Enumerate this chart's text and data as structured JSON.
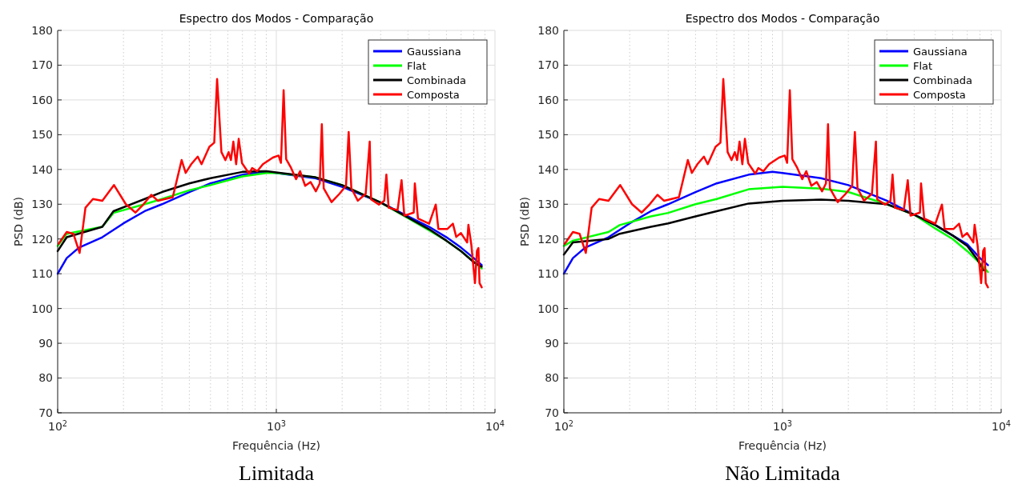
{
  "chart_data": [
    {
      "type": "line",
      "title": "Espectro dos Modos - Comparação",
      "xlabel": "Frequência (Hz)",
      "ylabel": "PSD (dB)",
      "log": "x",
      "grid": true,
      "legend": "top right",
      "xlim": [
        100,
        10000
      ],
      "ylim": [
        70,
        180
      ],
      "xticks": [
        {
          "value": 100,
          "label": "10$^{2}$"
        },
        {
          "value": 1000,
          "label": "10$^{3}$"
        },
        {
          "value": 10000,
          "label": "10$^{4}$"
        }
      ],
      "yticks": [
        70,
        80,
        90,
        100,
        110,
        120,
        130,
        140,
        150,
        160,
        170,
        180
      ],
      "annotations": [
        "Limitada"
      ],
      "series": [
        {
          "name": "Gaussiana",
          "color": "#0000ff",
          "x": [
            100,
            110,
            125,
            160,
            200,
            250,
            300,
            400,
            500,
            700,
            900,
            1000,
            1500,
            2000,
            3000,
            4000,
            5000,
            6000,
            7000,
            8000,
            8700
          ],
          "values": [
            110,
            114.5,
            117.5,
            120.5,
            124.5,
            128,
            130,
            133.5,
            136,
            138.5,
            139.3,
            139,
            137.5,
            135,
            130.5,
            126.5,
            123.5,
            120.5,
            117.5,
            114.5,
            112.5
          ]
        },
        {
          "name": "Flat",
          "color": "#00ff00",
          "x": [
            100,
            110,
            160,
            180,
            250,
            300,
            400,
            500,
            700,
            900,
            1000,
            1500,
            2000,
            3000,
            4000,
            5000,
            6000,
            7000,
            8000,
            8700
          ],
          "values": [
            118,
            121.5,
            123.5,
            127.5,
            130,
            131.5,
            134,
            135.5,
            138,
            139,
            139,
            137.8,
            135.5,
            130.5,
            126,
            122.5,
            119.5,
            116.5,
            113.5,
            111.5
          ]
        },
        {
          "name": "Combinada",
          "color": "#000000",
          "x": [
            100,
            110,
            160,
            180,
            250,
            300,
            400,
            500,
            700,
            900,
            1500,
            2000,
            3000,
            4000,
            5000,
            6000,
            7000,
            8000,
            8700
          ],
          "values": [
            116.5,
            120.5,
            123.5,
            128,
            131.5,
            133.5,
            136,
            137.5,
            139.3,
            139.5,
            137.8,
            135.5,
            130.5,
            126.2,
            122.8,
            119.5,
            116.5,
            113.3,
            112
          ]
        },
        {
          "name": "Composta",
          "color": "#ff0000",
          "x": [
            101,
            110,
            118,
            126,
            134,
            145,
            160,
            181,
            205,
            227,
            247,
            268,
            287,
            336,
            369,
            385,
            408,
            437,
            455,
            494,
            520,
            536,
            561,
            585,
            605,
            620,
            636,
            655,
            673,
            697,
            751,
            775,
            818,
            868,
            964,
            1024,
            1050,
            1080,
            1109,
            1163,
            1231,
            1284,
            1355,
            1434,
            1516,
            1580,
            1615,
            1647,
            1789,
            1944,
            2083,
            2142,
            2203,
            2359,
            2563,
            2674,
            2712,
            2946,
            3116,
            3186,
            3262,
            3585,
            3740,
            3850,
            4250,
            4300,
            4445,
            5000,
            5360,
            5510,
            6060,
            6420,
            6650,
            6990,
            7460,
            7560,
            7800,
            8100,
            8270,
            8400,
            8500,
            8700
          ],
          "values": [
            118.6,
            122,
            121.5,
            116,
            129,
            131.5,
            131,
            135.5,
            130,
            127.6,
            130,
            132.7,
            131,
            132,
            142.7,
            139,
            141.5,
            143.7,
            141.5,
            146.5,
            147.7,
            166,
            145,
            142.7,
            145,
            142.7,
            148,
            141.5,
            148.8,
            141.8,
            138.8,
            140.4,
            139.5,
            141.5,
            143.4,
            144,
            141.9,
            162.8,
            143,
            140.7,
            137.2,
            139.5,
            135.3,
            136.4,
            133.7,
            136,
            153,
            134.6,
            130.6,
            133,
            135.3,
            150.8,
            134.6,
            131,
            133,
            148,
            131.4,
            129.9,
            131,
            138.5,
            129,
            128.3,
            136.9,
            126.7,
            127.6,
            136,
            125.9,
            124.4,
            129.9,
            122.9,
            122.9,
            124.4,
            120.6,
            121.7,
            119,
            124.1,
            118.2,
            107.3,
            116.6,
            117.4,
            107.3,
            106.1
          ]
        }
      ]
    },
    {
      "type": "line",
      "title": "Espectro dos Modos - Comparação",
      "xlabel": "Frequência (Hz)",
      "ylabel": "PSD (dB)",
      "log": "x",
      "grid": true,
      "legend": "top right",
      "xlim": [
        100,
        10000
      ],
      "ylim": [
        70,
        180
      ],
      "xticks": [
        {
          "value": 100,
          "label": "10$^{2}$"
        },
        {
          "value": 1000,
          "label": "10$^{3}$"
        },
        {
          "value": 10000,
          "label": "10$^{4}$"
        }
      ],
      "yticks": [
        70,
        80,
        90,
        100,
        110,
        120,
        130,
        140,
        150,
        160,
        170,
        180
      ],
      "annotations": [
        "Não Limitada"
      ],
      "series": [
        {
          "name": "Gaussiana",
          "color": "#0000ff",
          "x": [
            100,
            110,
            125,
            160,
            200,
            250,
            300,
            400,
            500,
            700,
            900,
            1000,
            1500,
            2000,
            3000,
            4000,
            5000,
            6000,
            7000,
            8000,
            8700
          ],
          "values": [
            110,
            114.5,
            117.5,
            120.5,
            124.5,
            128,
            130,
            133.5,
            136,
            138.5,
            139.3,
            139,
            137.5,
            135.5,
            131,
            127,
            124,
            121,
            118.5,
            114.5,
            112.5
          ]
        },
        {
          "name": "Flat",
          "color": "#00ff00",
          "x": [
            100,
            110,
            160,
            180,
            250,
            300,
            400,
            500,
            700,
            1000,
            1500,
            2000,
            3000,
            4000,
            5000,
            6000,
            7000,
            8000,
            8700
          ],
          "values": [
            118,
            119.5,
            122,
            124,
            126.5,
            127.5,
            130,
            131.5,
            134.3,
            135,
            134.5,
            133.5,
            130,
            127,
            123,
            120,
            116.5,
            113,
            110.5
          ]
        },
        {
          "name": "Combinada",
          "color": "#000000",
          "x": [
            100,
            110,
            160,
            180,
            250,
            300,
            400,
            500,
            700,
            1000,
            1500,
            2000,
            3000,
            4000,
            5000,
            6000,
            7000,
            7800,
            8300
          ],
          "values": [
            115.5,
            119,
            120,
            121.5,
            123.5,
            124.5,
            126.5,
            128,
            130.2,
            131,
            131.3,
            131,
            130,
            127,
            124,
            121,
            118,
            114,
            111
          ]
        },
        {
          "name": "Composta",
          "color": "#ff0000",
          "x": [
            101,
            110,
            118,
            126,
            134,
            145,
            160,
            181,
            205,
            227,
            247,
            268,
            287,
            336,
            369,
            385,
            408,
            437,
            455,
            494,
            520,
            536,
            561,
            585,
            605,
            620,
            636,
            655,
            673,
            697,
            751,
            775,
            818,
            868,
            964,
            1024,
            1050,
            1080,
            1109,
            1163,
            1231,
            1284,
            1355,
            1434,
            1516,
            1580,
            1615,
            1647,
            1789,
            1944,
            2083,
            2142,
            2203,
            2359,
            2563,
            2674,
            2712,
            2946,
            3116,
            3186,
            3262,
            3585,
            3740,
            3850,
            4250,
            4300,
            4445,
            5000,
            5360,
            5510,
            6060,
            6420,
            6650,
            6990,
            7460,
            7560,
            7800,
            8100,
            8270,
            8400,
            8500,
            8700
          ],
          "values": [
            118.6,
            122,
            121.5,
            116,
            129,
            131.5,
            131,
            135.5,
            130,
            127.6,
            130,
            132.7,
            131,
            132,
            142.7,
            139,
            141.5,
            143.7,
            141.5,
            146.5,
            147.7,
            166,
            145,
            142.7,
            145,
            142.7,
            148,
            141.5,
            148.8,
            141.8,
            138.8,
            140.4,
            139.5,
            141.5,
            143.4,
            144,
            141.9,
            162.8,
            143,
            140.7,
            137.2,
            139.5,
            135.3,
            136.4,
            133.7,
            136,
            153,
            134.6,
            130.6,
            133,
            135.3,
            150.8,
            134.6,
            131,
            133,
            148,
            131.4,
            129.9,
            131,
            138.5,
            129,
            128.3,
            136.9,
            126.7,
            127.6,
            136,
            125.9,
            124.4,
            129.9,
            122.9,
            122.9,
            124.4,
            120.6,
            121.7,
            119,
            124.1,
            118.2,
            107.3,
            116.6,
            117.4,
            107.3,
            106.1
          ]
        }
      ]
    }
  ]
}
